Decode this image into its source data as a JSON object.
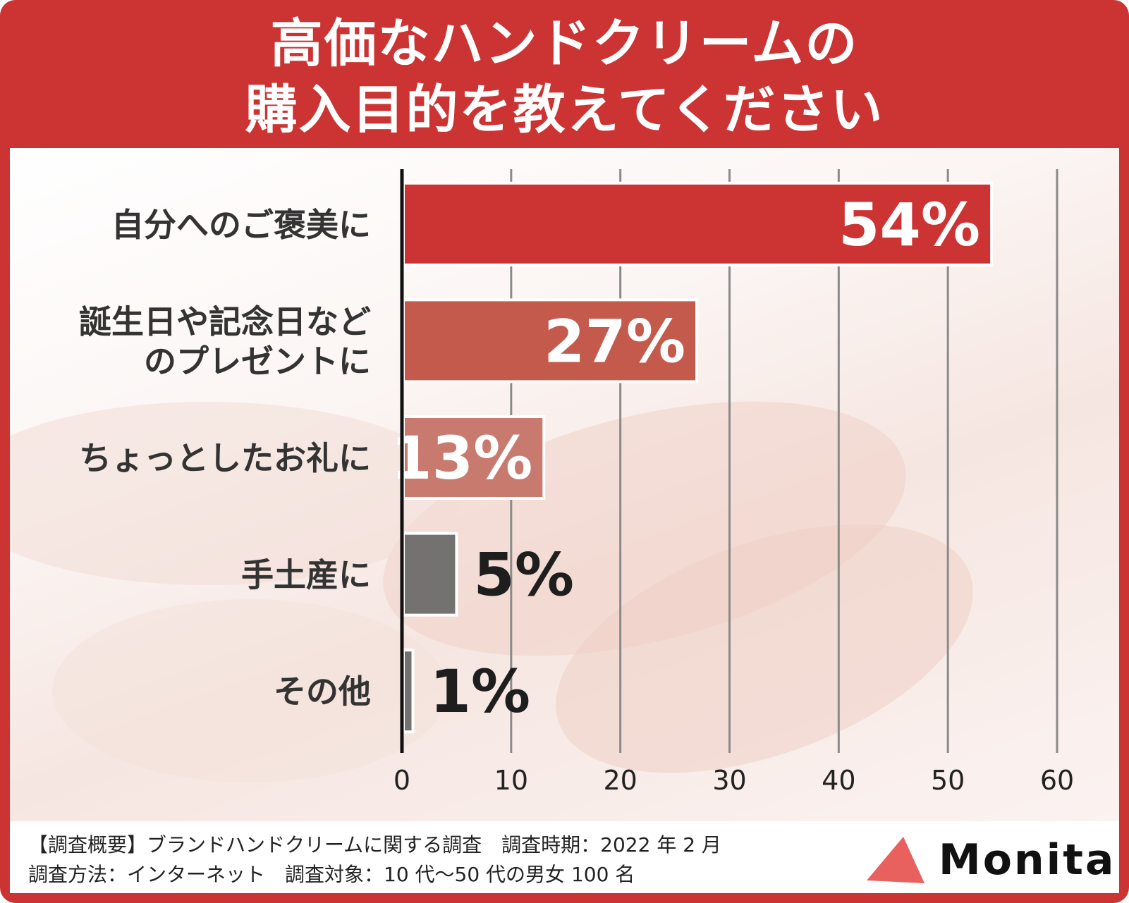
{
  "title": {
    "line1": "高価なハンドクリームの",
    "line2": "購入目的を教えてください"
  },
  "colors": {
    "brand_red": "#cc3333",
    "bar_colors": [
      "#cc3333",
      "#c45a4c",
      "#c97a6e",
      "#747171",
      "#747171"
    ],
    "logo_triangle": "#e8615e"
  },
  "chart_data": {
    "type": "bar",
    "orientation": "horizontal",
    "categories": [
      "自分へのご褒美に",
      "誕生日や記念日などのプレゼントに",
      "ちょっとしたお礼に",
      "手土産に",
      "その他"
    ],
    "category_label_lines": [
      [
        "自分へのご褒美に"
      ],
      [
        "誕生日や記念日など",
        "のプレゼントに"
      ],
      [
        "ちょっとしたお礼に"
      ],
      [
        "手土産に"
      ],
      [
        "その他"
      ]
    ],
    "values": [
      54,
      27,
      13,
      5,
      1
    ],
    "value_labels": [
      "54%",
      "27%",
      "13%",
      "5%",
      "1%"
    ],
    "xlim": [
      0,
      60
    ],
    "x_ticks": [
      0,
      10,
      20,
      30,
      40,
      50,
      60
    ],
    "x_tick_labels": [
      "0",
      "10",
      "20",
      "30",
      "40",
      "50",
      "60"
    ],
    "grid": true,
    "xlabel": "",
    "ylabel": ""
  },
  "footer": {
    "note_line1": "【調査概要】ブランドハンドクリームに関する調査　調査時期：2022 年 2 月",
    "note_line2": "調査方法：インターネット　調査対象：10 代〜50 代の男女 100 名",
    "logo_text": "Monita"
  }
}
